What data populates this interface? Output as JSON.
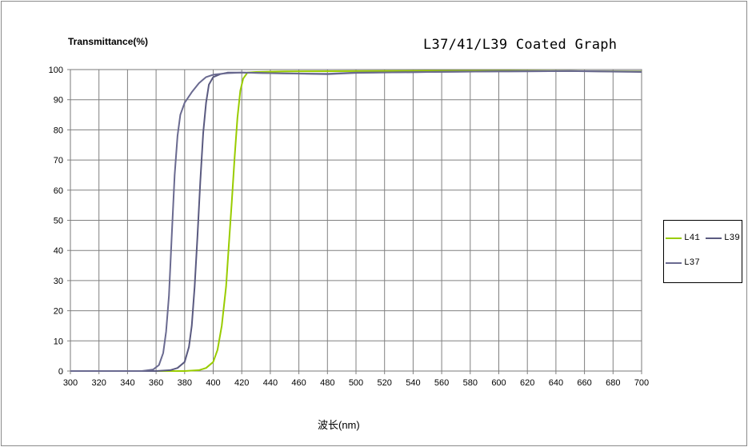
{
  "chart_data": {
    "type": "line",
    "title": "L37/41/L39 Coated Graph",
    "ylabel": "Transmittance(%)",
    "xlabel": "波长(nm)",
    "xlim": [
      300,
      700
    ],
    "ylim": [
      0,
      100
    ],
    "x_ticks": [
      "300",
      "320",
      "340",
      "360",
      "380",
      "400",
      "420",
      "440",
      "460",
      "480",
      "500",
      "520",
      "540",
      "560",
      "580",
      "600",
      "620",
      "640",
      "660",
      "680",
      "700"
    ],
    "y_ticks": [
      "0",
      "10",
      "20",
      "30",
      "40",
      "50",
      "60",
      "70",
      "80",
      "90",
      "100"
    ],
    "grid": true,
    "legend_position": "right",
    "series": [
      {
        "name": "L41",
        "color": "#99cc00",
        "x": [
          300,
          360,
          370,
          380,
          390,
          395,
          400,
          403,
          406,
          409,
          411,
          413,
          415,
          417,
          419,
          421,
          424,
          430,
          450,
          500,
          550,
          600,
          650,
          700
        ],
        "y": [
          0,
          0,
          0,
          0,
          0.3,
          1,
          3,
          7,
          15,
          28,
          42,
          56,
          71,
          84,
          93,
          97,
          99,
          99.2,
          99.4,
          99.5,
          99.6,
          99.6,
          99.5,
          99.4
        ]
      },
      {
        "name": "L39",
        "color": "#5a5a80",
        "x": [
          300,
          360,
          370,
          375,
          380,
          383,
          385,
          387,
          389,
          391,
          393,
          395,
          397,
          400,
          405,
          410,
          420,
          440,
          480,
          500,
          550,
          600,
          650,
          700
        ],
        "y": [
          0,
          0,
          0.3,
          1,
          3,
          8,
          15,
          28,
          45,
          63,
          79,
          89,
          95,
          97.5,
          98.5,
          99,
          99,
          98.8,
          98.5,
          98.9,
          99.2,
          99.4,
          99.5,
          99.2
        ]
      },
      {
        "name": "L37",
        "color": "#6a6a90",
        "x": [
          300,
          350,
          358,
          362,
          365,
          367,
          369,
          371,
          373,
          375,
          377,
          380,
          385,
          390,
          395,
          400,
          410,
          420,
          440,
          480,
          500,
          550,
          600,
          650,
          700
        ],
        "y": [
          0,
          0,
          0.5,
          2,
          6,
          13,
          25,
          45,
          65,
          78,
          85,
          89,
          92.5,
          95.5,
          97.5,
          98.3,
          98.8,
          99,
          98.8,
          98.6,
          99,
          99.2,
          99.4,
          99.5,
          99.3
        ]
      }
    ]
  }
}
